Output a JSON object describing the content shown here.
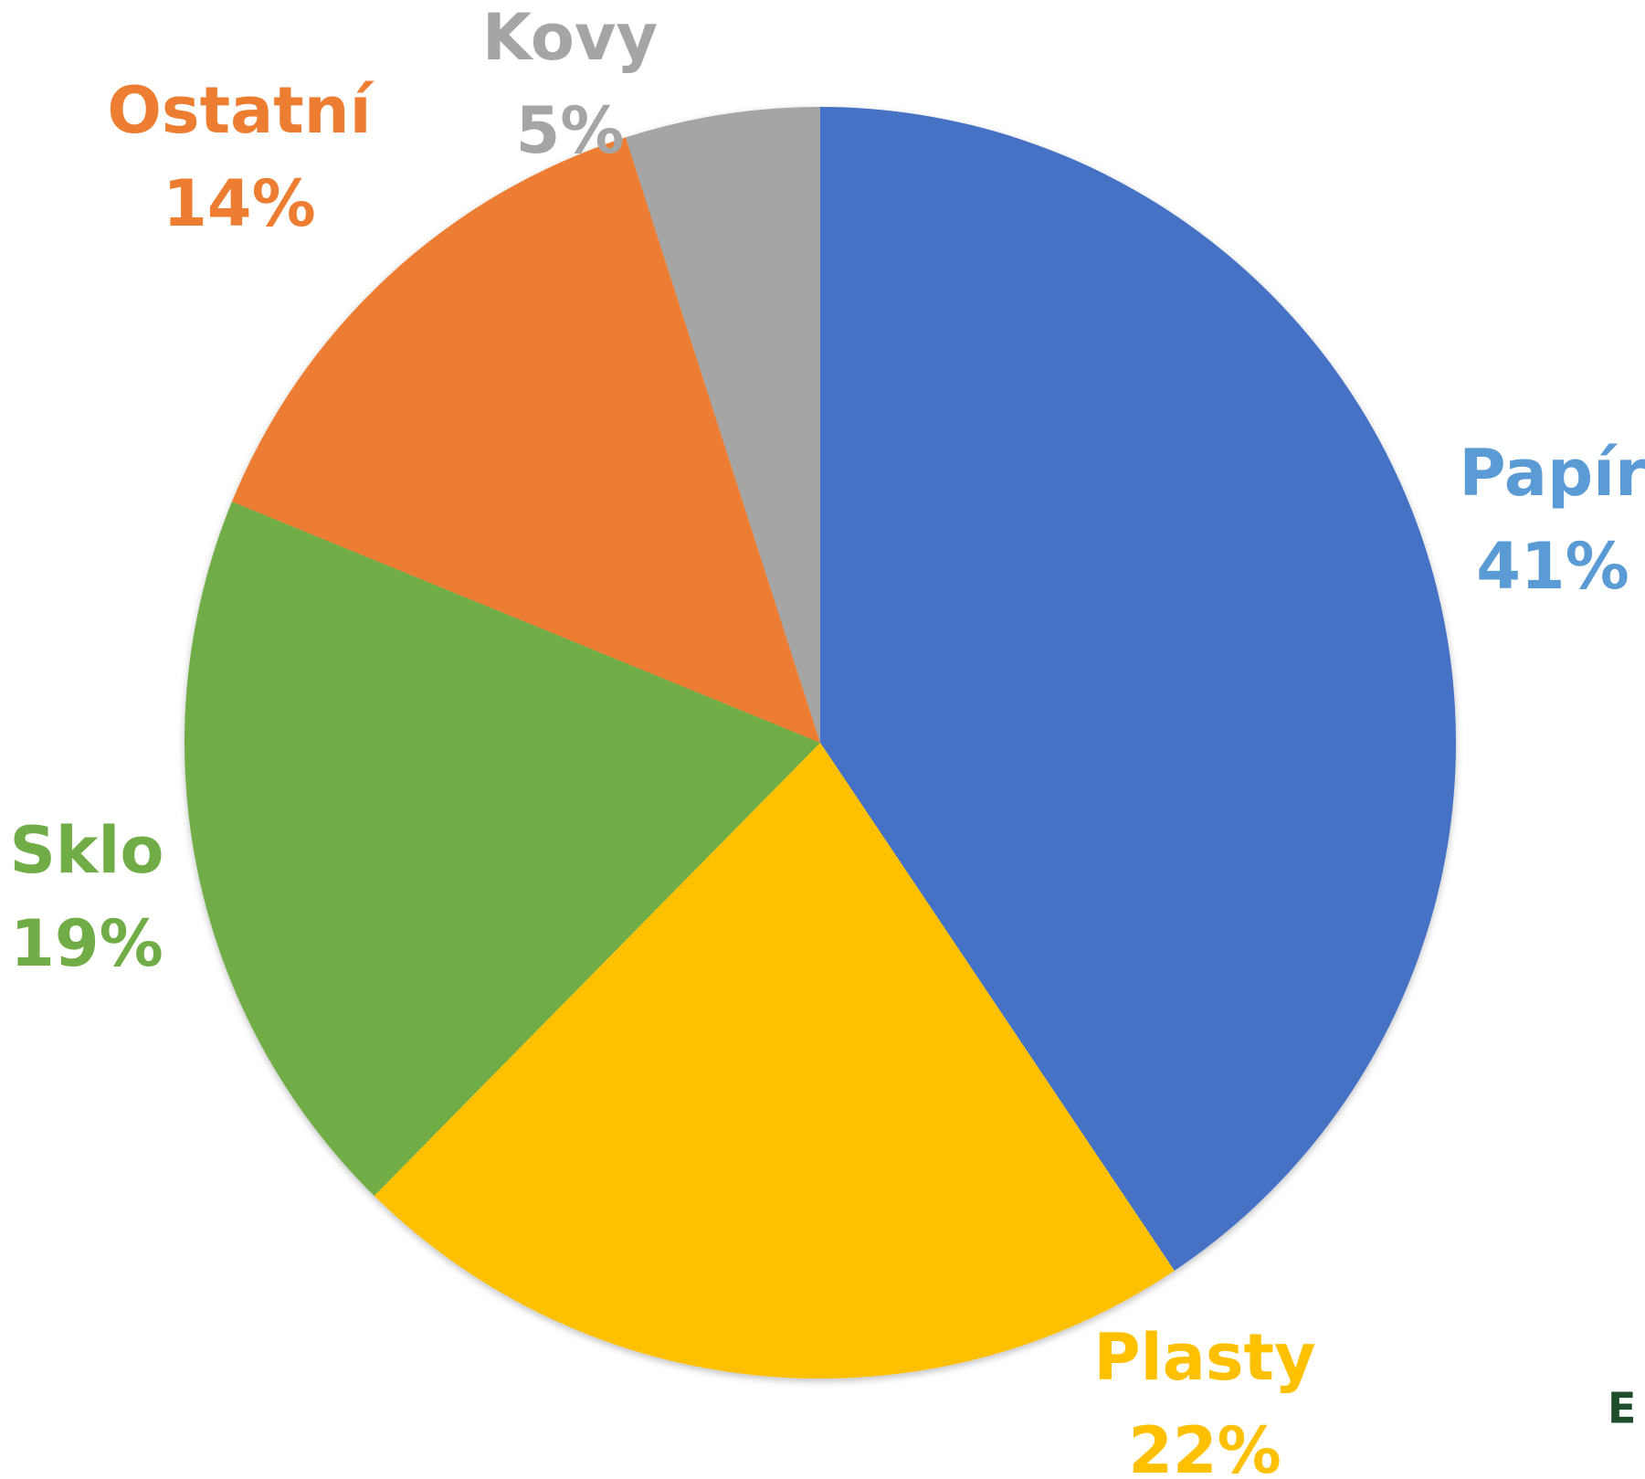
{
  "chart_data": {
    "type": "pie",
    "categories": [
      "Papír",
      "Plasty",
      "Sklo",
      "Ostatní",
      "Kovy"
    ],
    "values": [
      41,
      22,
      19,
      14,
      5
    ],
    "value_labels": [
      "41%",
      "22%",
      "19%",
      "14%",
      "5%"
    ],
    "colors": [
      "#4472c4",
      "#ffc000",
      "#70ad47",
      "#ed7d31",
      "#a5a5a5"
    ],
    "label_colors": [
      "#5b9bd5",
      "#ffc000",
      "#70ad47",
      "#ed7d31",
      "#a5a5a5"
    ]
  },
  "watermark": "EK"
}
